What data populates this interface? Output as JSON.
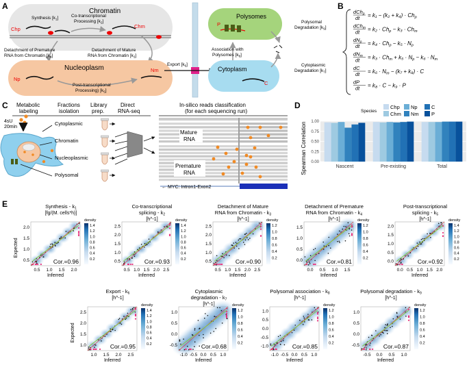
{
  "panel_letters": {
    "a": "A",
    "b": "B",
    "c": "C",
    "d": "D",
    "e": "E"
  },
  "panelA": {
    "chromatin": "Chromatin",
    "synthesis": "Synthesis [k",
    "synthesis_sub": "1",
    "cotrans_1": "Co-transcriptional",
    "cotrans_2": "Processing [k",
    "cotrans_sub": "2",
    "chp": "Chp",
    "chm": "Chm",
    "det_prem_1": "Detachment of Premature",
    "det_prem_2": "RNA from Chromatin [k",
    "det_prem_sub": "4",
    "det_mat_1": "Detachment of Mature",
    "det_mat_2": "RNA from Chromatin [k",
    "det_mat_sub": "3",
    "nucleoplasm": "Nucleoplasm",
    "np": "Np",
    "nm": "Nm",
    "posttrans_1": "Post-transcriptional",
    "posttrans_2": "Processing) [k",
    "posttrans_sub": "5",
    "export": "Export [k",
    "export_sub": "6",
    "polysomes": "Polysomes",
    "p": "P",
    "assoc_1": "Association with",
    "assoc_2": "Polysomes [k",
    "assoc_sub": "8",
    "poly_deg_1": "Polysomal",
    "poly_deg_2": "Degradation [k",
    "poly_deg_sub": "9",
    "cytoplasm": "Cytoplasm",
    "c": "C",
    "cyto_deg_1": "Cytoplasmic",
    "cyto_deg_2": "Degradation [k",
    "cyto_deg_sub": "7"
  },
  "panelB": {
    "equations": [
      {
        "lhs_top": "dCh",
        "lhs_top_sub": "p",
        "lhs_bot": "dt",
        "rhs": "= k₁ − (k₂ + k₄) · Ch",
        "rhs_sub": "p"
      },
      {
        "lhs_top": "dCh",
        "lhs_top_sub": "m",
        "lhs_bot": "dt",
        "rhs": "= k₂ · Ch",
        "rhs_sub": "p",
        "rhs2": " − k₃ · Ch",
        "rhs2_sub": "m"
      },
      {
        "lhs_top": "dN",
        "lhs_top_sub": "p",
        "lhs_bot": "dt",
        "rhs": "= k₄ · Ch",
        "rhs_sub": "p",
        "rhs2": " − k₅ · N",
        "rhs2_sub": "p"
      },
      {
        "lhs_top": "dN",
        "lhs_top_sub": "m",
        "lhs_bot": "dt",
        "rhs": "= k₃ · Ch",
        "rhs_sub": "m",
        "rhs2": " + k₅ · N",
        "rhs2_sub": "p",
        "rhs3": " − k₆ · N",
        "rhs3_sub": "m"
      },
      {
        "lhs_top": "dC",
        "lhs_top_sub": "",
        "lhs_bot": "dt",
        "rhs": "= k₆ · N",
        "rhs_sub": "m",
        "rhs2": " − (k₇ + k₈) · C",
        "rhs2_sub": ""
      },
      {
        "lhs_top": "dP",
        "lhs_top_sub": "",
        "lhs_bot": "dt",
        "rhs": "= k₈ · C − k₉ · P",
        "rhs_sub": ""
      }
    ]
  },
  "panelC": {
    "metabolic_1": "Metabolic",
    "metabolic_2": "labeling",
    "fractions_1": "Fractions",
    "fractions_2": "isolation",
    "library_1": "Library",
    "library_2": "prep.",
    "direct_1": "Direct",
    "direct_2": "RNA-seq",
    "label_4su": "4sU",
    "label_20min": "20min",
    "cytoplasmic": "Cytoplasmic",
    "chromatin": "Chromatin",
    "nucleoplasmic": "Nucleoplasmic",
    "polysomal": "Polysomal",
    "insilico_1": "In-silico reads classification",
    "insilico_2": "(for each sequencing run)",
    "mature_1": "Mature",
    "mature_2": "RNA",
    "premature_1": "Premature",
    "premature_2": "RNA",
    "myc": "← MYC: Intron1-Exon2"
  },
  "chart_data": [
    {
      "type": "bar",
      "panel": "D",
      "ylabel": "Spearman Correlation",
      "ylim": [
        0.0,
        1.0
      ],
      "yticks": [
        "0.00",
        "0.25",
        "0.50",
        "0.75",
        "1.00"
      ],
      "legend_title": "Species",
      "legend_labels": [
        "Chp",
        "Np",
        "C",
        "Chm",
        "Nm",
        "P"
      ],
      "categories": [
        "Nascent",
        "Pre-existing",
        "Total"
      ],
      "series": [
        {
          "name": "Chp",
          "color": "#c6dbef",
          "values": [
            0.97,
            0.98,
            0.98
          ]
        },
        {
          "name": "Chm",
          "color": "#9ecae1",
          "values": [
            0.96,
            0.97,
            0.98
          ]
        },
        {
          "name": "Np",
          "color": "#6baed6",
          "values": [
            0.98,
            0.98,
            0.98
          ]
        },
        {
          "name": "Nm",
          "color": "#3182bd",
          "values": [
            0.84,
            0.97,
            0.99
          ]
        },
        {
          "name": "C",
          "color": "#2171b5",
          "values": [
            0.92,
            0.98,
            0.99
          ]
        },
        {
          "name": "P",
          "color": "#08519c",
          "values": [
            0.96,
            0.99,
            0.99
          ]
        }
      ]
    },
    {
      "type": "scatter",
      "panel": "E",
      "xlabel": "Inferred",
      "ylabel": "Expected",
      "legend_title": "density",
      "plots": [
        {
          "title1": "Synthesis - k",
          "title_sub": "1",
          "title2": "[fg/(M. cells*h)]",
          "cor": "Cor.=0.96",
          "xticks": [
            "0.5",
            "1.0",
            "1.5",
            "2.0"
          ],
          "yticks": [
            "0.5",
            "1.0",
            "1.5",
            "2.0"
          ],
          "cticks": [
            "0.2",
            "0.4",
            "0.6",
            "0.8",
            "1.0",
            "1.2",
            "1.4"
          ],
          "cmax": 1.4,
          "scatter": "tight"
        },
        {
          "title1": "Co-transcriptional",
          "title_mid": "splicing - k",
          "title_sub": "2",
          "title2": "[h^-1]",
          "cor": "Cor.=0.93",
          "xticks": [
            "0.5",
            "1.0",
            "1.5",
            "2.0",
            "2.5"
          ],
          "yticks": [
            "0.5",
            "1.0",
            "1.5",
            "2.0",
            "2.5"
          ],
          "cticks": [
            "0.2",
            "0.4",
            "0.6",
            "0.8",
            "1.0",
            "1.2",
            "1.4"
          ],
          "cmax": 1.4,
          "scatter": "tight"
        },
        {
          "title1": "Detachment of Mature",
          "title_mid": "RNA from Chromatin - k",
          "title_sub": "3",
          "title2": "[h^-1]",
          "cor": "Cor.=0.90",
          "xticks": [
            "0.5",
            "1.0",
            "1.5",
            "2.0",
            "2.5"
          ],
          "yticks": [
            "0.5",
            "1.0",
            "1.5",
            "2.0",
            "2.5"
          ],
          "cticks": [
            "0.2",
            "0.4",
            "0.6",
            "0.8",
            "1.0",
            "1.2"
          ],
          "cmax": 1.2,
          "scatter": "medium"
        },
        {
          "title1": "Detachment of Premature",
          "title_mid": "RNA from Chromatin - k",
          "title_sub": "4",
          "title2": "[h^-1]",
          "cor": "Cor.=0.81",
          "xticks": [
            "0.0",
            "0.5",
            "1.0",
            "1.5"
          ],
          "yticks": [
            "0.0",
            "0.5",
            "1.0",
            "1.5"
          ],
          "cticks": [
            "0.2",
            "0.4",
            "0.6",
            "0.8",
            "1.0",
            "1.2"
          ],
          "cmax": 1.2,
          "scatter": "wide"
        },
        {
          "title1": "Post-transcriptional",
          "title_mid": "splicing - k",
          "title_sub": "5",
          "title2": "[h^-1]",
          "cor": "Cor.=0.92",
          "xticks": [
            "0.0",
            "0.5",
            "1.0",
            "1.5",
            "2.0"
          ],
          "yticks": [
            "0.0",
            "0.5",
            "1.0",
            "1.5",
            "2.0"
          ],
          "cticks": [
            "0.2",
            "0.4",
            "0.6",
            "0.8",
            "1.0",
            "1.2",
            "1.4"
          ],
          "cmax": 1.4,
          "scatter": "tight"
        },
        {
          "title1": "Export - k",
          "title_sub": "6",
          "title2": "[h^-1]",
          "cor": "Cor.=0.95",
          "xticks": [
            "1.0",
            "1.5",
            "2.0",
            "2.5"
          ],
          "yticks": [
            "1.0",
            "1.5",
            "2.0",
            "2.5"
          ],
          "cticks": [
            "0.2",
            "0.4",
            "0.6",
            "0.8",
            "1.0",
            "1.2",
            "1.4"
          ],
          "cmax": 1.4,
          "scatter": "tight"
        },
        {
          "title1": "Cytoplasmic",
          "title_mid": "degradation - k",
          "title_sub": "7",
          "title2": "[h^-1]",
          "cor": "Cor.=0.68",
          "xticks": [
            "-1.0",
            "-0.5",
            "0.0",
            "0.5",
            "1.0"
          ],
          "yticks": [
            "-0.5",
            "0.0",
            "0.5",
            "1.0"
          ],
          "cticks": [
            "0.2",
            "0.4",
            "0.6",
            "0.8",
            "1.0",
            "1.2"
          ],
          "cmax": 1.2,
          "scatter": "veryWide"
        },
        {
          "title1": "Polysomal association - k",
          "title_sub": "8",
          "title2": "[h^-1]",
          "cor": "Cor.=0.85",
          "xticks": [
            "-1.0",
            "-0.5",
            "0.0",
            "0.5",
            "1.0"
          ],
          "yticks": [
            "-1.0",
            "-0.5",
            "0.0",
            "0.5",
            "1.0"
          ],
          "cticks": [
            "0.2",
            "0.4",
            "0.6",
            "0.8",
            "1.0",
            "1.2"
          ],
          "cmax": 1.2,
          "scatter": "medium"
        },
        {
          "title1": "Polysomal degradation - k",
          "title_sub": "9",
          "title2": "[h^-1]",
          "cor": "Cor.=0.87",
          "xticks": [
            "-0.5",
            "0.0",
            "0.5",
            "1.0"
          ],
          "yticks": [
            "-0.5",
            "0.0",
            "0.5",
            "1.0"
          ],
          "cticks": [
            "0.2",
            "0.4",
            "0.6",
            "0.8",
            "1.0",
            "1.2"
          ],
          "cmax": 1.2,
          "scatter": "medium"
        }
      ]
    }
  ]
}
